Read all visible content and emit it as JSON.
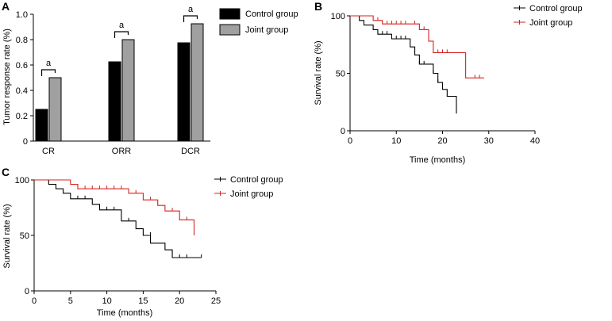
{
  "panels": {
    "a": "A",
    "b": "B",
    "c": "C"
  },
  "chart_data": [
    {
      "id": "A",
      "type": "bar",
      "categories": [
        "CR",
        "ORR",
        "DCR"
      ],
      "series": [
        {
          "name": "Control group",
          "color": "#000000",
          "values": [
            0.25,
            0.625,
            0.775
          ]
        },
        {
          "name": "Joint group",
          "color": "#a0a0a0",
          "values": [
            0.5,
            0.8,
            0.925
          ]
        }
      ],
      "significance": [
        "a",
        "a",
        "a"
      ],
      "ylabel": "Tumor response rate (%)",
      "xlabel": "",
      "ylim": [
        0,
        1.0
      ],
      "yticks": [
        "0",
        "0.2",
        "0.4",
        "0.6",
        "0.8",
        "1.0"
      ]
    },
    {
      "id": "B",
      "type": "line",
      "subtype": "kaplan-meier",
      "xlabel": "Time (months)",
      "ylabel": "Survival rate (%)",
      "xlim": [
        0,
        40
      ],
      "ylim": [
        0,
        100
      ],
      "xticks": [
        "0",
        "10",
        "20",
        "30",
        "40"
      ],
      "yticks": [
        "0",
        "50",
        "100"
      ],
      "series": [
        {
          "name": "Control group",
          "color": "#000000",
          "steps": [
            [
              0,
              100
            ],
            [
              2,
              96
            ],
            [
              3,
              92
            ],
            [
              5,
              88
            ],
            [
              6,
              84
            ],
            [
              9,
              80
            ],
            [
              13,
              73
            ],
            [
              14,
              66
            ],
            [
              15,
              58
            ],
            [
              18,
              50
            ],
            [
              19,
              42
            ],
            [
              20,
              36
            ],
            [
              21,
              30
            ],
            [
              23,
              15
            ]
          ],
          "end": 23,
          "censors": [
            [
              7,
              84
            ],
            [
              8,
              84
            ],
            [
              10,
              80
            ],
            [
              11,
              80
            ],
            [
              12,
              80
            ],
            [
              15,
              58
            ],
            [
              16,
              58
            ],
            [
              18,
              50
            ],
            [
              19,
              42
            ],
            [
              20,
              36
            ]
          ]
        },
        {
          "name": "Joint group",
          "color": "#d62020",
          "steps": [
            [
              0,
              100
            ],
            [
              5,
              96
            ],
            [
              7,
              93
            ],
            [
              15,
              88
            ],
            [
              17,
              78
            ],
            [
              18,
              68
            ],
            [
              25,
              46
            ]
          ],
          "end": 29,
          "censors": [
            [
              6,
              96
            ],
            [
              8,
              93
            ],
            [
              9,
              93
            ],
            [
              10,
              93
            ],
            [
              11,
              93
            ],
            [
              12,
              93
            ],
            [
              14,
              93
            ],
            [
              16,
              88
            ],
            [
              19,
              68
            ],
            [
              20,
              68
            ],
            [
              21,
              68
            ],
            [
              27,
              46
            ],
            [
              28,
              46
            ]
          ]
        }
      ]
    },
    {
      "id": "C",
      "type": "line",
      "subtype": "kaplan-meier",
      "xlabel": "Time (months)",
      "ylabel": "Survival rate (%)",
      "xlim": [
        0,
        25
      ],
      "ylim": [
        0,
        100
      ],
      "xticks": [
        "0",
        "5",
        "10",
        "15",
        "20",
        "25"
      ],
      "yticks": [
        "0",
        "50",
        "100"
      ],
      "series": [
        {
          "name": "Control group",
          "color": "#000000",
          "steps": [
            [
              0,
              100
            ],
            [
              2,
              96
            ],
            [
              3,
              92
            ],
            [
              4,
              88
            ],
            [
              5,
              83
            ],
            [
              8,
              78
            ],
            [
              9,
              73
            ],
            [
              12,
              63
            ],
            [
              14,
              56
            ],
            [
              15,
              50
            ],
            [
              16,
              43
            ],
            [
              18,
              37
            ],
            [
              19,
              30
            ]
          ],
          "end": 23,
          "censors": [
            [
              6,
              83
            ],
            [
              7,
              83
            ],
            [
              10,
              73
            ],
            [
              11,
              73
            ],
            [
              13,
              63
            ],
            [
              16,
              50
            ],
            [
              20,
              30
            ],
            [
              21,
              30
            ],
            [
              23,
              30
            ]
          ]
        },
        {
          "name": "Joint group",
          "color": "#d62020",
          "steps": [
            [
              0,
              100
            ],
            [
              5,
              96
            ],
            [
              6,
              92
            ],
            [
              13,
              88
            ],
            [
              15,
              82
            ],
            [
              17,
              77
            ],
            [
              18,
              72
            ],
            [
              20,
              64
            ],
            [
              22,
              50
            ]
          ],
          "end": 22,
          "censors": [
            [
              7,
              92
            ],
            [
              8,
              92
            ],
            [
              9,
              92
            ],
            [
              10,
              92
            ],
            [
              11,
              92
            ],
            [
              12,
              92
            ],
            [
              14,
              88
            ],
            [
              16,
              82
            ],
            [
              19,
              72
            ],
            [
              21,
              64
            ],
            [
              22,
              50
            ]
          ]
        }
      ]
    }
  ]
}
